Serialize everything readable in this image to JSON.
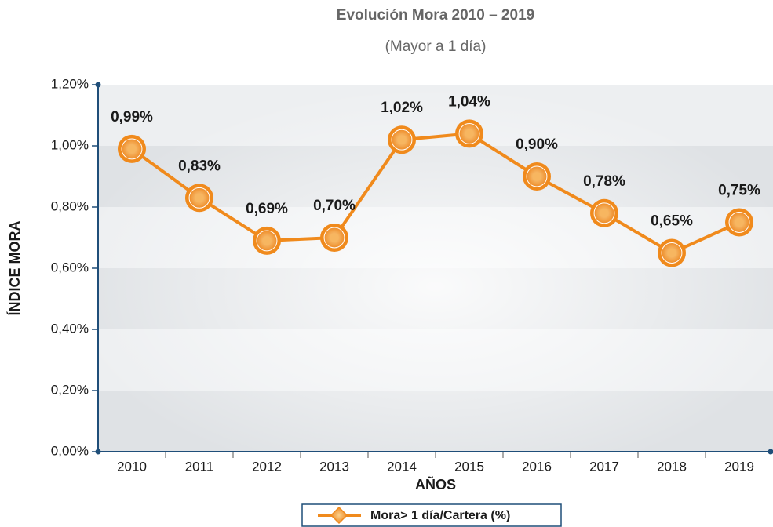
{
  "chart_data": {
    "type": "line",
    "title": "Evolución Mora 2010 – 2019",
    "subtitle": "(Mayor a 1 día)",
    "x_label": "AÑOS",
    "y_label": "ÍNDICE MORA",
    "categories": [
      "2010",
      "2011",
      "2012",
      "2013",
      "2014",
      "2015",
      "2016",
      "2017",
      "2018",
      "2019"
    ],
    "series": [
      {
        "name": "Mora> 1 día/Cartera (%)",
        "color": "#f08a1c",
        "values": [
          0.99,
          0.83,
          0.69,
          0.7,
          1.02,
          1.04,
          0.9,
          0.78,
          0.65,
          0.75
        ],
        "value_labels": [
          "0,99%",
          "0,83%",
          "0,69%",
          "0,70%",
          "1,02%",
          "1,04%",
          "0,90%",
          "0,78%",
          "0,65%",
          "0,75%"
        ]
      }
    ],
    "ylim": [
      0,
      1.2
    ],
    "yticks": [
      {
        "value": 0,
        "label": "0,00%"
      },
      {
        "value": 0.2,
        "label": "0,20%"
      },
      {
        "value": 0.4,
        "label": "0,40%"
      },
      {
        "value": 0.6,
        "label": "0,60%"
      },
      {
        "value": 0.8,
        "label": "0,80%"
      },
      {
        "value": 1.0,
        "label": "1,00%"
      },
      {
        "value": 1.2,
        "label": "1,20%"
      }
    ],
    "legend": "bottom"
  }
}
